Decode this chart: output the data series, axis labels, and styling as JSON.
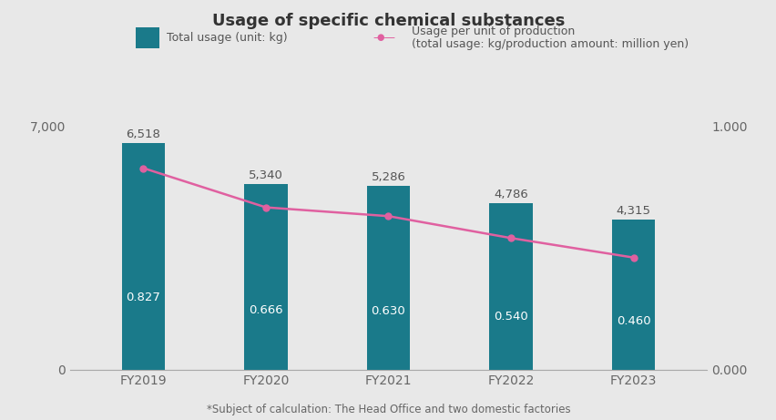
{
  "title": "Usage of specific chemical substances",
  "categories": [
    "FY2019",
    "FY2020",
    "FY2021",
    "FY2022",
    "FY2023"
  ],
  "bar_values": [
    6518,
    5340,
    5286,
    4786,
    4315
  ],
  "bar_labels": [
    "6,518",
    "5,340",
    "5,286",
    "4,786",
    "4,315"
  ],
  "line_values": [
    0.827,
    0.666,
    0.63,
    0.54,
    0.46
  ],
  "line_labels": [
    "0.827",
    "0.666",
    "0.630",
    "0.540",
    "0.460"
  ],
  "bar_color": "#1a7a8a",
  "line_color": "#e060a0",
  "background_color": "#e8e8e8",
  "bar_label_color": "#ffffff",
  "top_label_color": "#555555",
  "ylim_left": [
    0,
    7000
  ],
  "ylim_right": [
    0,
    1.0
  ],
  "yticks_left": [
    0,
    7000
  ],
  "yticks_right": [
    0.0,
    1.0
  ],
  "legend_bar": "Total usage (unit: kg)",
  "legend_line1": "Usage per unit of production",
  "legend_line2": "(total usage: kg/production amount: million yen)",
  "footnote": "*Subject of calculation: The Head Office and two domestic factories",
  "left_tick_labels": [
    "0",
    "7,000"
  ],
  "right_tick_labels": [
    "0.000",
    "1.000"
  ]
}
